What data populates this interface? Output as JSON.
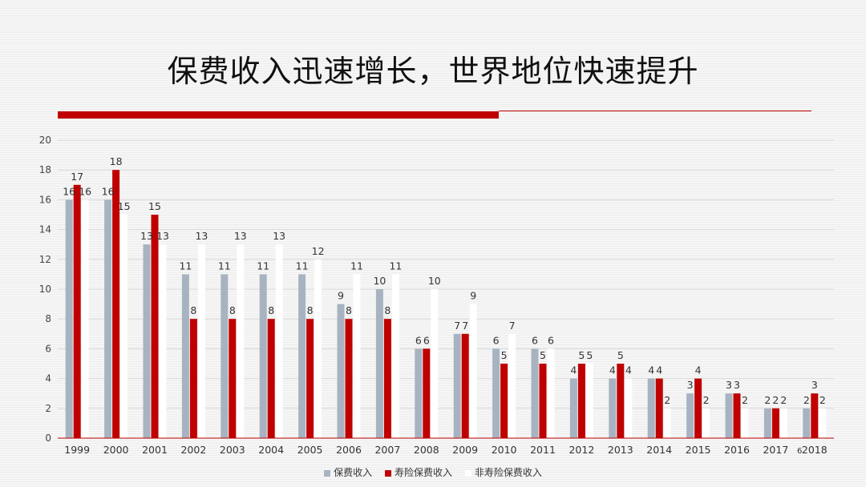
{
  "header": {
    "title": "保费收入迅速增长，世界地位快速提升"
  },
  "colors": {
    "accent": "#c00000",
    "series_gray": "#a7b3c0",
    "series_red": "#c00000",
    "series_white": "#ffffff"
  },
  "chart_data": {
    "type": "bar",
    "categories": [
      "1999",
      "2000",
      "2001",
      "2002",
      "2003",
      "2004",
      "2005",
      "2006",
      "2007",
      "2008",
      "2009",
      "2010",
      "2011",
      "2012",
      "2013",
      "2014",
      "2015",
      "2016",
      "2017",
      "2018"
    ],
    "series": [
      {
        "name": "保费收入",
        "values": [
          16,
          16,
          13,
          11,
          11,
          11,
          11,
          9,
          10,
          6,
          7,
          6,
          6,
          4,
          4,
          4,
          3,
          3,
          2,
          2
        ]
      },
      {
        "name": "寿险保费收入",
        "values": [
          17,
          18,
          15,
          8,
          8,
          8,
          8,
          8,
          8,
          6,
          7,
          5,
          5,
          5,
          5,
          4,
          4,
          3,
          2,
          3
        ]
      },
      {
        "name": "非寿险保费收入",
        "values": [
          16,
          15,
          13,
          13,
          13,
          13,
          12,
          11,
          11,
          10,
          9,
          7,
          6,
          5,
          4,
          2,
          2,
          2,
          2,
          2
        ]
      }
    ],
    "yticks": [
      0,
      2,
      4,
      6,
      8,
      10,
      12,
      14,
      16,
      18,
      20
    ],
    "ylim": [
      0,
      20
    ],
    "grid": true,
    "legend_position": "bottom",
    "stray_label": "6"
  }
}
